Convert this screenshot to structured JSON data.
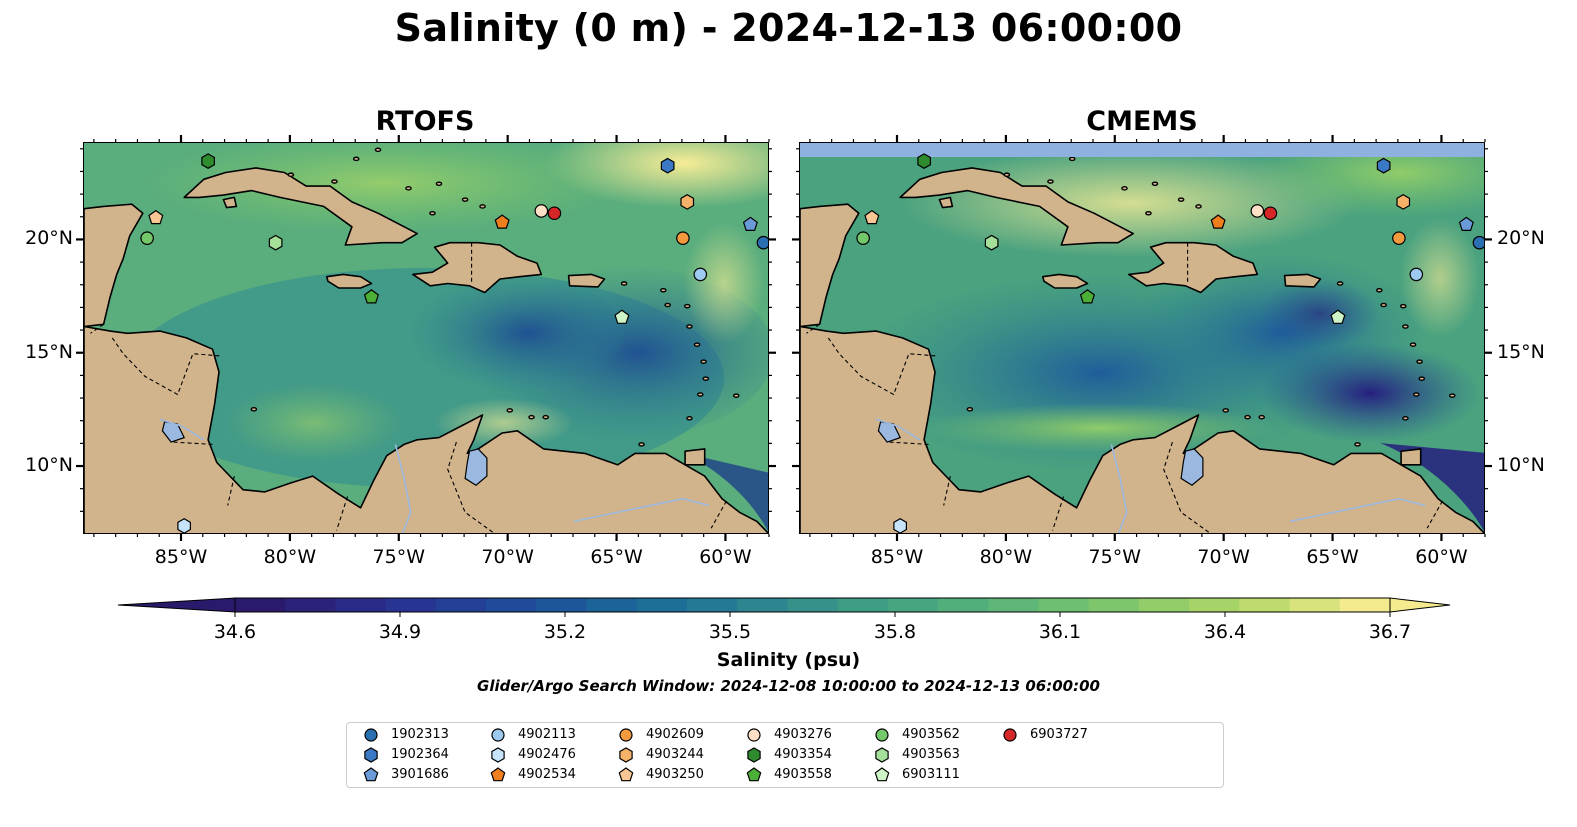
{
  "title": "Salinity (0 m) - 2024-12-13 06:00:00",
  "panels": [
    {
      "name": "RTOFS"
    },
    {
      "name": "CMEMS"
    }
  ],
  "axes": {
    "x_ticks": [
      "85°W",
      "80°W",
      "75°W",
      "70°W",
      "65°W",
      "60°W"
    ],
    "y_ticks": [
      "20°N",
      "15°N",
      "10°N"
    ],
    "lon_range": [
      -89.5,
      -58.0
    ],
    "lat_range": [
      7.0,
      24.3
    ]
  },
  "colorbar": {
    "label": "Salinity (psu)",
    "ticks": [
      "34.6",
      "34.9",
      "35.2",
      "35.5",
      "35.8",
      "36.1",
      "36.4",
      "36.7"
    ],
    "range": [
      34.6,
      36.7
    ],
    "colormap": [
      "#2b1a6b",
      "#2a2e8f",
      "#1f4a9a",
      "#1a6799",
      "#2a8390",
      "#3f9e83",
      "#59b57a",
      "#80c76a",
      "#b2d867",
      "#f4ea8e"
    ]
  },
  "search_window": "Glider/Argo Search Window: 2024-12-08 10:00:00 to 2024-12-13 06:00:00",
  "colors": {
    "land": "#d2b48c",
    "lake": "#9bb9e0",
    "missing": "#8eb1e0"
  },
  "floats": [
    {
      "id": "1902313",
      "color": "#2b6fb3",
      "marker": "circle",
      "lon": -58.3,
      "lat": 19.9
    },
    {
      "id": "1902364",
      "color": "#3b79c5",
      "marker": "hexagon",
      "lon": -62.7,
      "lat": 23.3
    },
    {
      "id": "3901686",
      "color": "#6a9bd8",
      "marker": "pentagon",
      "lon": -58.9,
      "lat": 20.7
    },
    {
      "id": "4902113",
      "color": "#9ec9f0",
      "marker": "circle",
      "lon": -61.2,
      "lat": 18.5
    },
    {
      "id": "4902476",
      "color": "#c6e4fb",
      "marker": "hexagon",
      "lon": -84.9,
      "lat": 7.4
    },
    {
      "id": "4902534",
      "color": "#ef7e1e",
      "marker": "pentagon",
      "lon": -70.3,
      "lat": 20.8
    },
    {
      "id": "4902609",
      "color": "#f39a3e",
      "marker": "circle",
      "lon": -62.0,
      "lat": 20.1
    },
    {
      "id": "4903244",
      "color": "#f7b26a",
      "marker": "hexagon",
      "lon": -61.8,
      "lat": 21.7
    },
    {
      "id": "4903250",
      "color": "#f8c793",
      "marker": "pentagon",
      "lon": -86.2,
      "lat": 21.0
    },
    {
      "id": "4903276",
      "color": "#fde0c5",
      "marker": "circle",
      "lon": -68.5,
      "lat": 21.3
    },
    {
      "id": "4903354",
      "color": "#2e8b2e",
      "marker": "hexagon",
      "lon": -83.8,
      "lat": 23.5
    },
    {
      "id": "4903558",
      "color": "#4caf37",
      "marker": "pentagon",
      "lon": -76.3,
      "lat": 17.5
    },
    {
      "id": "4903562",
      "color": "#73c86a",
      "marker": "circle",
      "lon": -86.6,
      "lat": 20.1
    },
    {
      "id": "4903563",
      "color": "#a4e09a",
      "marker": "hexagon",
      "lon": -80.7,
      "lat": 19.9
    },
    {
      "id": "6903111",
      "color": "#cdf3c6",
      "marker": "pentagon",
      "lon": -64.8,
      "lat": 16.6
    },
    {
      "id": "6903727",
      "color": "#d62728",
      "marker": "circle",
      "lon": -67.9,
      "lat": 21.2
    }
  ]
}
